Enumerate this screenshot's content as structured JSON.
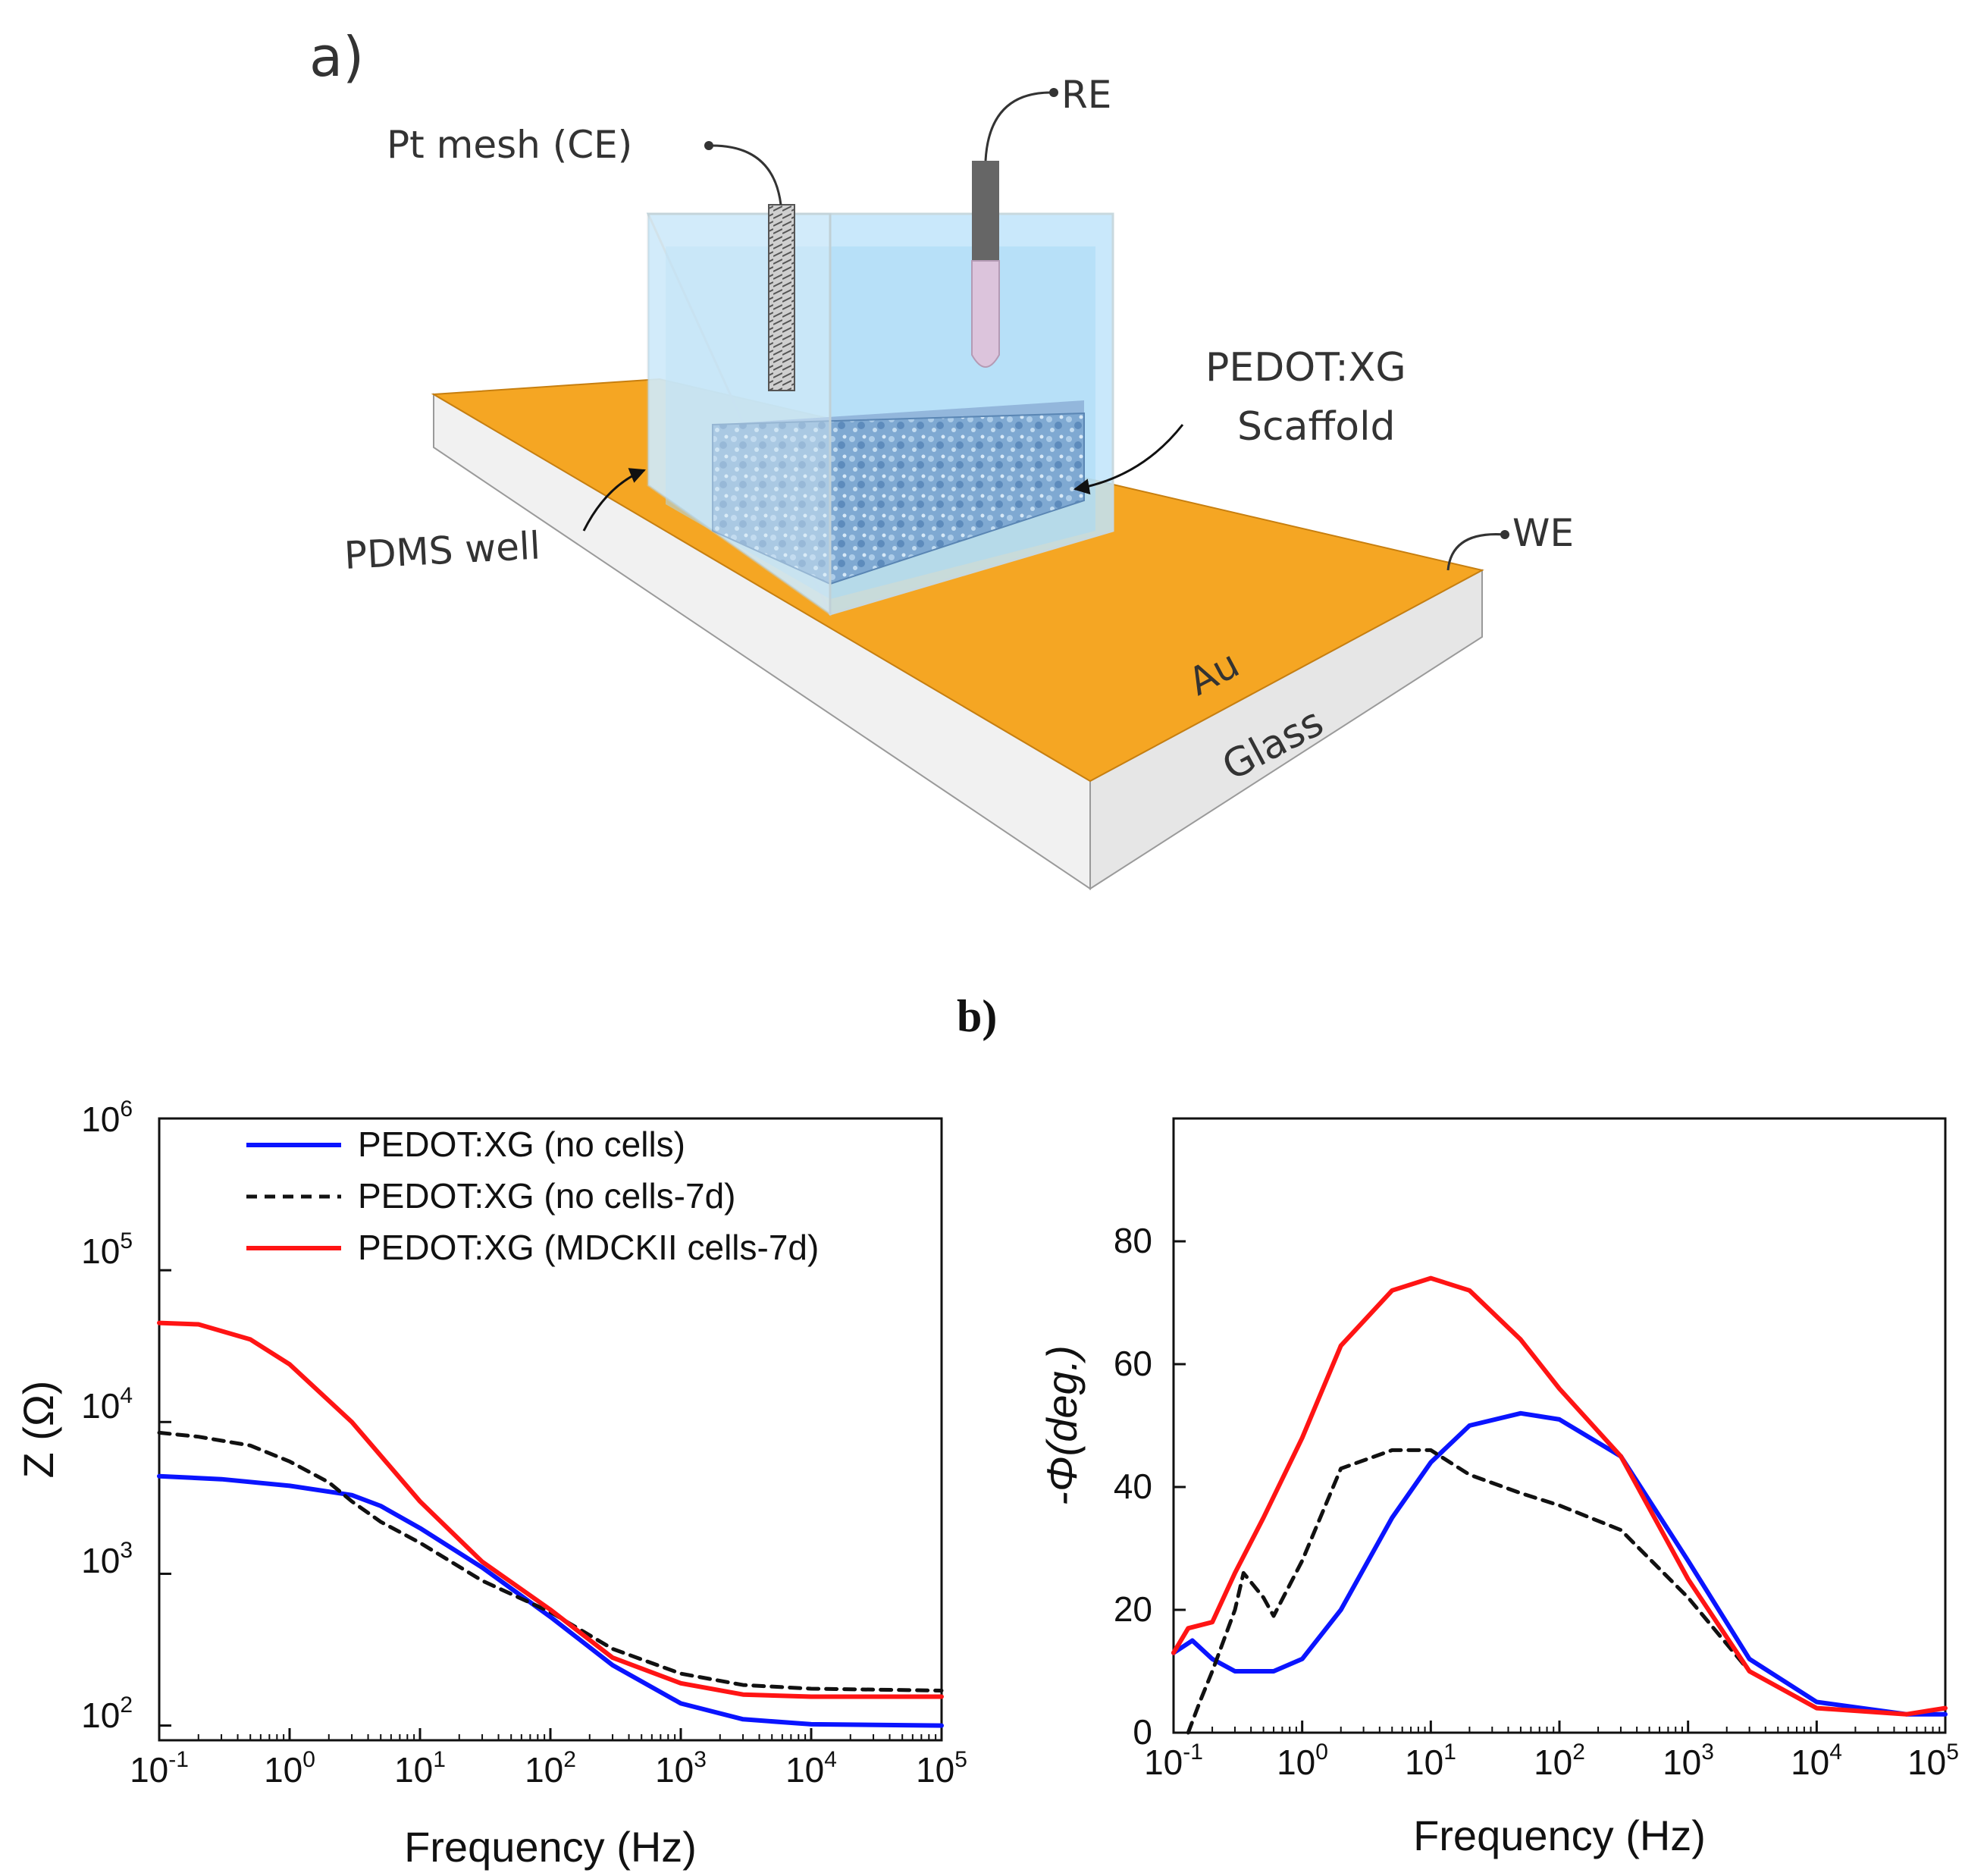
{
  "panel_a": {
    "label": "a)",
    "callouts": {
      "ce": "Pt mesh (CE)",
      "re": "RE",
      "scaffold_line1": "PEDOT:XG",
      "scaffold_line2": "Scaffold",
      "pdms": "PDMS well",
      "we": "WE",
      "au": "Au",
      "glass": "Glass"
    }
  },
  "panel_b": {
    "label": "b)"
  },
  "colors": {
    "no_cells": "#0a14ff",
    "no_cells_7d": "#111111",
    "mdck": "#ff1414",
    "gold": "#f5a623",
    "glass": "#e8e8e8",
    "water": "#a8d8f5",
    "scaffold": "#6e9ec8"
  },
  "chart_data": [
    {
      "type": "line",
      "xscale": "log",
      "yscale": "log",
      "xlabel": "Frequency (Hz)",
      "ylabel": "Z (Ω)",
      "xlim": [
        0.1,
        100000
      ],
      "ylim": [
        80,
        1000000
      ],
      "x_ticks": [
        {
          "base": "10",
          "exp": "-1"
        },
        {
          "base": "10",
          "exp": "0"
        },
        {
          "base": "10",
          "exp": "1"
        },
        {
          "base": "10",
          "exp": "2"
        },
        {
          "base": "10",
          "exp": "3"
        },
        {
          "base": "10",
          "exp": "4"
        },
        {
          "base": "10",
          "exp": "5"
        }
      ],
      "y_ticks": [
        {
          "base": "10",
          "exp": "2"
        },
        {
          "base": "10",
          "exp": "3"
        },
        {
          "base": "10",
          "exp": "4"
        },
        {
          "base": "10",
          "exp": "5"
        },
        {
          "base": "10",
          "exp": "6"
        }
      ],
      "legend": [
        "PEDOT:XG (no cells)",
        "PEDOT:XG (no cells-7d)",
        "PEDOT:XG (MDCKII cells-7d)"
      ],
      "series": [
        {
          "name": "PEDOT:XG (no cells)",
          "style": "solid",
          "color": "#0a14ff",
          "x": [
            0.1,
            0.3,
            1,
            3,
            5,
            10,
            30,
            100,
            300,
            1000,
            3000,
            10000,
            100000
          ],
          "y": [
            4400,
            4200,
            3800,
            3300,
            2800,
            2000,
            1100,
            520,
            250,
            140,
            110,
            102,
            100
          ]
        },
        {
          "name": "PEDOT:XG (no cells-7d)",
          "style": "dashed",
          "color": "#111111",
          "x": [
            0.1,
            0.2,
            0.5,
            1,
            2,
            3,
            5,
            10,
            30,
            100,
            300,
            1000,
            3000,
            10000,
            100000
          ],
          "y": [
            8500,
            8000,
            7000,
            5500,
            4000,
            3000,
            2200,
            1600,
            900,
            560,
            320,
            220,
            185,
            175,
            170
          ]
        },
        {
          "name": "PEDOT:XG (MDCKII cells-7d)",
          "style": "solid",
          "color": "#ff1414",
          "x": [
            0.1,
            0.2,
            0.5,
            1,
            3,
            10,
            30,
            100,
            300,
            1000,
            3000,
            10000,
            100000
          ],
          "y": [
            45000,
            44000,
            35000,
            24000,
            10000,
            3000,
            1200,
            580,
            280,
            190,
            160,
            155,
            155
          ]
        }
      ]
    },
    {
      "type": "line",
      "xscale": "log",
      "yscale": "linear",
      "xlabel": "Frequency (Hz)",
      "ylabel": "-Φ(deg.)",
      "xlim": [
        0.1,
        100000
      ],
      "ylim": [
        0,
        100
      ],
      "x_ticks": [
        {
          "base": "10",
          "exp": "-1"
        },
        {
          "base": "10",
          "exp": "0"
        },
        {
          "base": "10",
          "exp": "1"
        },
        {
          "base": "10",
          "exp": "2"
        },
        {
          "base": "10",
          "exp": "3"
        },
        {
          "base": "10",
          "exp": "4"
        },
        {
          "base": "10",
          "exp": "5"
        }
      ],
      "y_ticks": [
        "0",
        "20",
        "40",
        "60",
        "80"
      ],
      "series": [
        {
          "name": "PEDOT:XG (no cells)",
          "style": "solid",
          "color": "#0a14ff",
          "x": [
            0.1,
            0.14,
            0.2,
            0.3,
            0.6,
            1,
            2,
            5,
            10,
            20,
            50,
            100,
            300,
            1000,
            3000,
            10000,
            50000,
            100000
          ],
          "y": [
            13,
            15,
            12,
            10,
            10,
            12,
            20,
            35,
            44,
            50,
            52,
            51,
            45,
            28,
            12,
            5,
            3,
            3
          ]
        },
        {
          "name": "PEDOT:XG (no cells-7d)",
          "style": "dashed",
          "color": "#111111",
          "x": [
            0.13,
            0.16,
            0.2,
            0.3,
            0.35,
            0.5,
            0.6,
            1,
            2,
            5,
            10,
            20,
            50,
            100,
            300,
            1000,
            3000,
            10000,
            50000,
            100000
          ],
          "y": [
            0,
            5,
            10,
            20,
            26,
            22,
            19,
            28,
            43,
            46,
            46,
            42,
            39,
            37,
            33,
            22,
            10,
            4,
            3,
            4
          ]
        },
        {
          "name": "PEDOT:XG (MDCKII cells-7d)",
          "style": "solid",
          "color": "#ff1414",
          "x": [
            0.1,
            0.13,
            0.2,
            0.3,
            0.5,
            1,
            2,
            5,
            10,
            20,
            50,
            100,
            300,
            1000,
            3000,
            10000,
            50000,
            100000
          ],
          "y": [
            13,
            17,
            18,
            26,
            35,
            48,
            63,
            72,
            74,
            72,
            64,
            56,
            45,
            25,
            10,
            4,
            3,
            4
          ]
        }
      ]
    }
  ]
}
